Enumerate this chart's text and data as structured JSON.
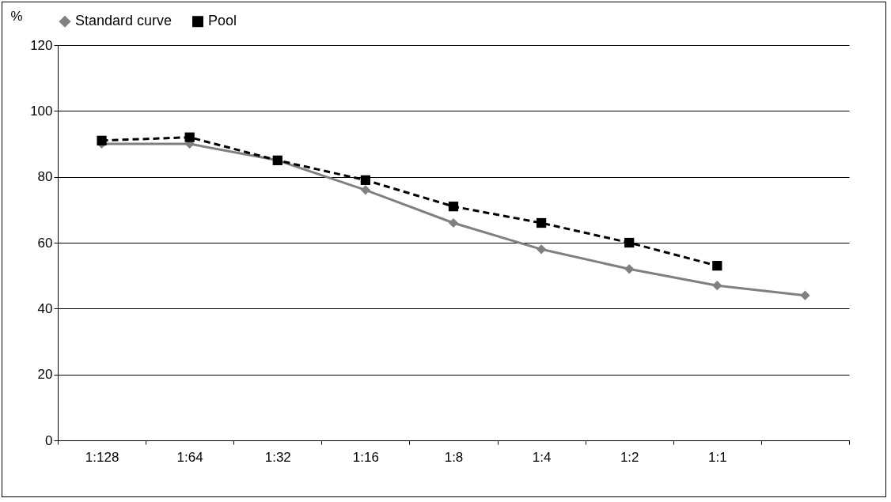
{
  "chart_data": {
    "type": "line",
    "ylabel": "%",
    "categories": [
      "1:128",
      "1:64",
      "1:32",
      "1:16",
      "1:8",
      "1:4",
      "1:2",
      "1:1",
      null
    ],
    "series": [
      {
        "name": "Standard curve",
        "color": "#808080",
        "marker": "diamond",
        "line_style": "solid",
        "values": [
          90,
          90,
          85,
          76,
          66,
          58,
          52,
          47,
          44
        ]
      },
      {
        "name": "Pool",
        "color": "#000000",
        "marker": "square",
        "line_style": "dashed",
        "values": [
          91,
          92,
          85,
          79,
          71,
          66,
          60,
          53,
          null
        ]
      }
    ],
    "ylim": [
      0,
      120
    ],
    "yticks": [
      0,
      20,
      40,
      60,
      80,
      100,
      120
    ],
    "grid": "y",
    "legend": "top"
  }
}
